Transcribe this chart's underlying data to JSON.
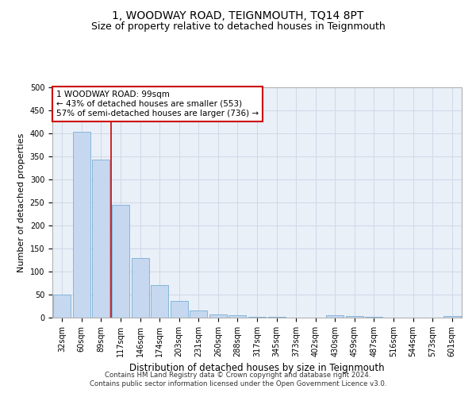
{
  "title": "1, WOODWAY ROAD, TEIGNMOUTH, TQ14 8PT",
  "subtitle": "Size of property relative to detached houses in Teignmouth",
  "xlabel": "Distribution of detached houses by size in Teignmouth",
  "ylabel": "Number of detached properties",
  "categories": [
    "32sqm",
    "60sqm",
    "89sqm",
    "117sqm",
    "146sqm",
    "174sqm",
    "203sqm",
    "231sqm",
    "260sqm",
    "288sqm",
    "317sqm",
    "345sqm",
    "373sqm",
    "402sqm",
    "430sqm",
    "459sqm",
    "487sqm",
    "516sqm",
    "544sqm",
    "573sqm",
    "601sqm"
  ],
  "values": [
    50,
    403,
    343,
    245,
    130,
    70,
    37,
    16,
    7,
    6,
    1,
    1,
    0,
    0,
    5,
    4,
    1,
    0,
    0,
    0,
    3
  ],
  "bar_color": "#c5d8f0",
  "bar_edge_color": "#7aafd4",
  "grid_color": "#d0d8e8",
  "background_color": "#eaf0f8",
  "vline_x_index": 2.5,
  "vline_color": "#cc0000",
  "annotation_text": "1 WOODWAY ROAD: 99sqm\n← 43% of detached houses are smaller (553)\n57% of semi-detached houses are larger (736) →",
  "annotation_box_color": "#ffffff",
  "annotation_box_edge_color": "#cc0000",
  "ylim": [
    0,
    500
  ],
  "yticks": [
    0,
    50,
    100,
    150,
    200,
    250,
    300,
    350,
    400,
    450,
    500
  ],
  "footer_line1": "Contains HM Land Registry data © Crown copyright and database right 2024.",
  "footer_line2": "Contains public sector information licensed under the Open Government Licence v3.0.",
  "title_fontsize": 10,
  "subtitle_fontsize": 9,
  "tick_fontsize": 7,
  "ylabel_fontsize": 8,
  "xlabel_fontsize": 8.5,
  "annotation_fontsize": 7.5
}
